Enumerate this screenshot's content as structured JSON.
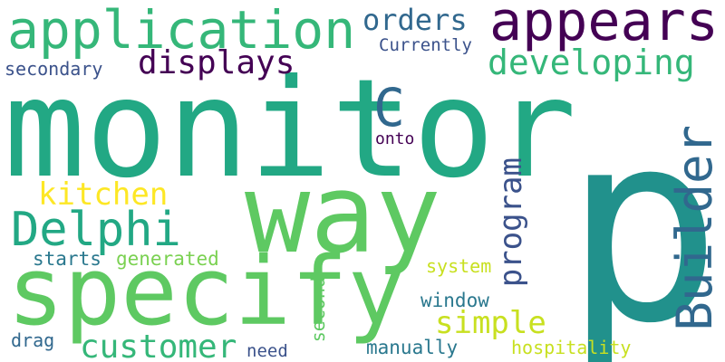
{
  "words": {
    "monitor": {
      "text": "monitor",
      "color": "#22a884"
    },
    "p": {
      "text": "p",
      "color": "#21918c"
    },
    "way": {
      "text": "way",
      "color": "#5ec962"
    },
    "specify": {
      "text": "specify",
      "color": "#5ec962"
    },
    "application": {
      "text": "application",
      "color": "#35b779"
    },
    "appears": {
      "text": "appears",
      "color": "#440154"
    },
    "builder": {
      "text": "Builder",
      "color": "#31688e"
    },
    "delphi": {
      "text": "Delphi",
      "color": "#22a884"
    },
    "c": {
      "text": "C",
      "color": "#31688e"
    },
    "customer": {
      "text": "customer",
      "color": "#35b779"
    },
    "developing": {
      "text": "developing",
      "color": "#35b779"
    },
    "displays": {
      "text": "displays",
      "color": "#440154"
    },
    "program": {
      "text": "program",
      "color": "#3b528b"
    },
    "orders": {
      "text": "orders",
      "color": "#31688e"
    },
    "kitchen": {
      "text": "kitchen",
      "color": "#fde725"
    },
    "simple": {
      "text": "simple",
      "color": "#c8e020"
    },
    "secondary": {
      "text": "secondary",
      "color": "#3b528b"
    },
    "currently": {
      "text": "Currently",
      "color": "#3b528b"
    },
    "generated": {
      "text": "generated",
      "color": "#7ad151"
    },
    "starts": {
      "text": "starts",
      "color": "#2a788e"
    },
    "onto": {
      "text": "onto",
      "color": "#440154"
    },
    "system": {
      "text": "system",
      "color": "#c8e020"
    },
    "second": {
      "text": "second",
      "color": "#5ec962"
    },
    "window": {
      "text": "window",
      "color": "#2a788e"
    },
    "drag": {
      "text": "drag",
      "color": "#31688e"
    },
    "need": {
      "text": "need",
      "color": "#3b528b"
    },
    "manually": {
      "text": "manually",
      "color": "#2a788e"
    },
    "hospitality": {
      "text": "hospitality",
      "color": "#c8e020"
    }
  }
}
